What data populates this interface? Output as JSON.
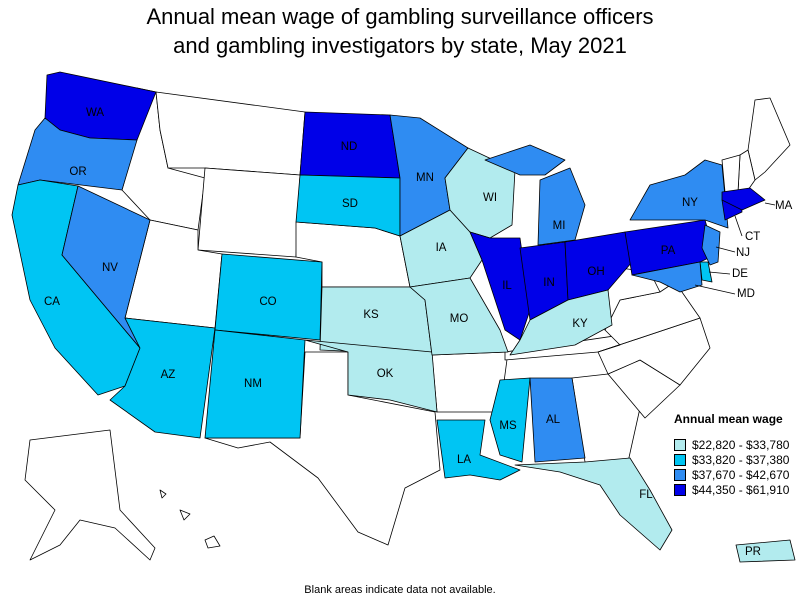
{
  "title": {
    "line1": "Annual mean wage of gambling surveillance officers",
    "line2": "and gambling investigators by state, May 2021"
  },
  "legend": {
    "title": "Annual mean wage",
    "items": [
      {
        "label": "$22,820 - $33,780",
        "color": "#b2ebee"
      },
      {
        "label": "$33,820 - $37,380",
        "color": "#00c5f3"
      },
      {
        "label": "$37,670 - $42,670",
        "color": "#2f8cf2"
      },
      {
        "label": "$44,350 - $61,910",
        "color": "#0000e8"
      }
    ]
  },
  "footnote": "Blank areas indicate data not available.",
  "states": [
    {
      "abbr": "WA",
      "bin": 3
    },
    {
      "abbr": "OR",
      "bin": 2
    },
    {
      "abbr": "CA",
      "bin": 1
    },
    {
      "abbr": "NV",
      "bin": 2
    },
    {
      "abbr": "AZ",
      "bin": 1
    },
    {
      "abbr": "CO",
      "bin": 1
    },
    {
      "abbr": "NM",
      "bin": 1
    },
    {
      "abbr": "ND",
      "bin": 3
    },
    {
      "abbr": "SD",
      "bin": 1
    },
    {
      "abbr": "KS",
      "bin": 0
    },
    {
      "abbr": "OK",
      "bin": 0
    },
    {
      "abbr": "MN",
      "bin": 2
    },
    {
      "abbr": "IA",
      "bin": 0
    },
    {
      "abbr": "MO",
      "bin": 0
    },
    {
      "abbr": "WI",
      "bin": 0
    },
    {
      "abbr": "IL",
      "bin": 3
    },
    {
      "abbr": "MI",
      "bin": 2
    },
    {
      "abbr": "IN",
      "bin": 3
    },
    {
      "abbr": "OH",
      "bin": 3
    },
    {
      "abbr": "KY",
      "bin": 0
    },
    {
      "abbr": "MS",
      "bin": 1
    },
    {
      "abbr": "AL",
      "bin": 2
    },
    {
      "abbr": "LA",
      "bin": 1
    },
    {
      "abbr": "FL",
      "bin": 0
    },
    {
      "abbr": "PA",
      "bin": 3
    },
    {
      "abbr": "NY",
      "bin": 2
    },
    {
      "abbr": "NJ",
      "bin": 2
    },
    {
      "abbr": "DE",
      "bin": 1
    },
    {
      "abbr": "MD",
      "bin": 2
    },
    {
      "abbr": "CT",
      "bin": 3
    },
    {
      "abbr": "MA",
      "bin": 3
    },
    {
      "abbr": "PR",
      "bin": 0
    }
  ]
}
